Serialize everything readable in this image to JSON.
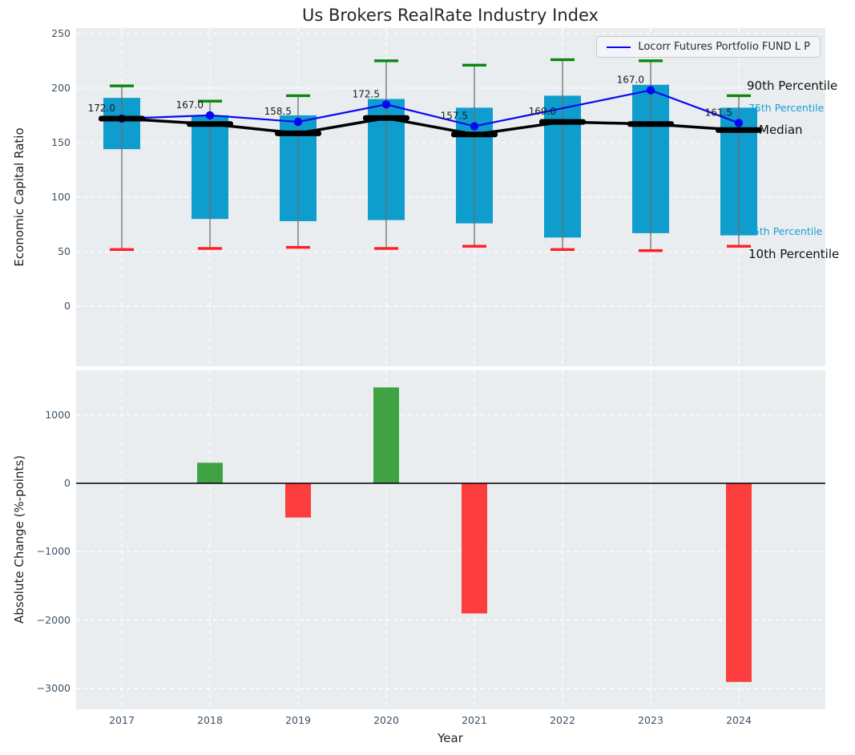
{
  "title": "Us Brokers RealRate Industry Index",
  "legend": {
    "label": "Locorr Futures Portfolio FUND L P"
  },
  "percentile_labels": {
    "p90": "90th Percentile",
    "p75": "75th Percentile",
    "median": "Median",
    "p25": "25th Percentile",
    "p10": "10th Percentile"
  },
  "colors": {
    "axes_bg": "#e9edf0",
    "grid": "#ffffff",
    "box_bar": "#0f9dce",
    "whisker": "#6e6e6e",
    "cap_90th": "#0b870b",
    "cap_10th": "#ff1f1f",
    "median": "#000000",
    "fund_line": "#0808f0",
    "positive_bar": "#3fa344",
    "negative_bar": "#fc3d3d",
    "tick_text": "#3e5163",
    "annotation_text": "#1b1b1b"
  },
  "chart_data": [
    {
      "type": "box-percentile-with-line",
      "title": "Us Brokers RealRate Industry Index",
      "ylabel": "Economic Capital Ratio",
      "ylim": [
        -55,
        255
      ],
      "yticks": [
        0,
        50,
        100,
        150,
        200,
        250
      ],
      "grid": true,
      "legend_position": "upper right",
      "categories": [
        "2017",
        "2018",
        "2019",
        "2020",
        "2021",
        "2022",
        "2023",
        "2024"
      ],
      "series": [
        {
          "name": "90th Percentile",
          "values": [
            202,
            188,
            193,
            225,
            221,
            226,
            225,
            193
          ]
        },
        {
          "name": "75th Percentile",
          "values": [
            191,
            175,
            175,
            190,
            182,
            193,
            203,
            182
          ]
        },
        {
          "name": "Median",
          "values": [
            172,
            167,
            158.5,
            172.5,
            157.5,
            169,
            167,
            161.5
          ]
        },
        {
          "name": "25th Percentile",
          "values": [
            144,
            80,
            78,
            79,
            76,
            63,
            67,
            65
          ]
        },
        {
          "name": "10th Percentile",
          "values": [
            52,
            53,
            54,
            53,
            55,
            52,
            51,
            55
          ]
        },
        {
          "name": "Locorr Futures Portfolio FUND L P",
          "values": [
            172,
            175,
            169,
            185,
            165,
            null,
            198,
            168
          ]
        }
      ],
      "median_annotations": [
        "172.0",
        "167.0",
        "158.5",
        "172.5",
        "157.5",
        "169.0",
        "167.0",
        "161.5"
      ]
    },
    {
      "type": "bar",
      "ylabel": "Absolute Change (%-points)",
      "xlabel": "Year",
      "ylim": [
        -3300,
        1650
      ],
      "yticks": [
        1000,
        0,
        -1000,
        -2000,
        -3000
      ],
      "grid": true,
      "categories": [
        "2017",
        "2018",
        "2019",
        "2020",
        "2021",
        "2022",
        "2023",
        "2024"
      ],
      "values": [
        null,
        300,
        -500,
        1400,
        -1900,
        0,
        0,
        -2900
      ]
    }
  ]
}
